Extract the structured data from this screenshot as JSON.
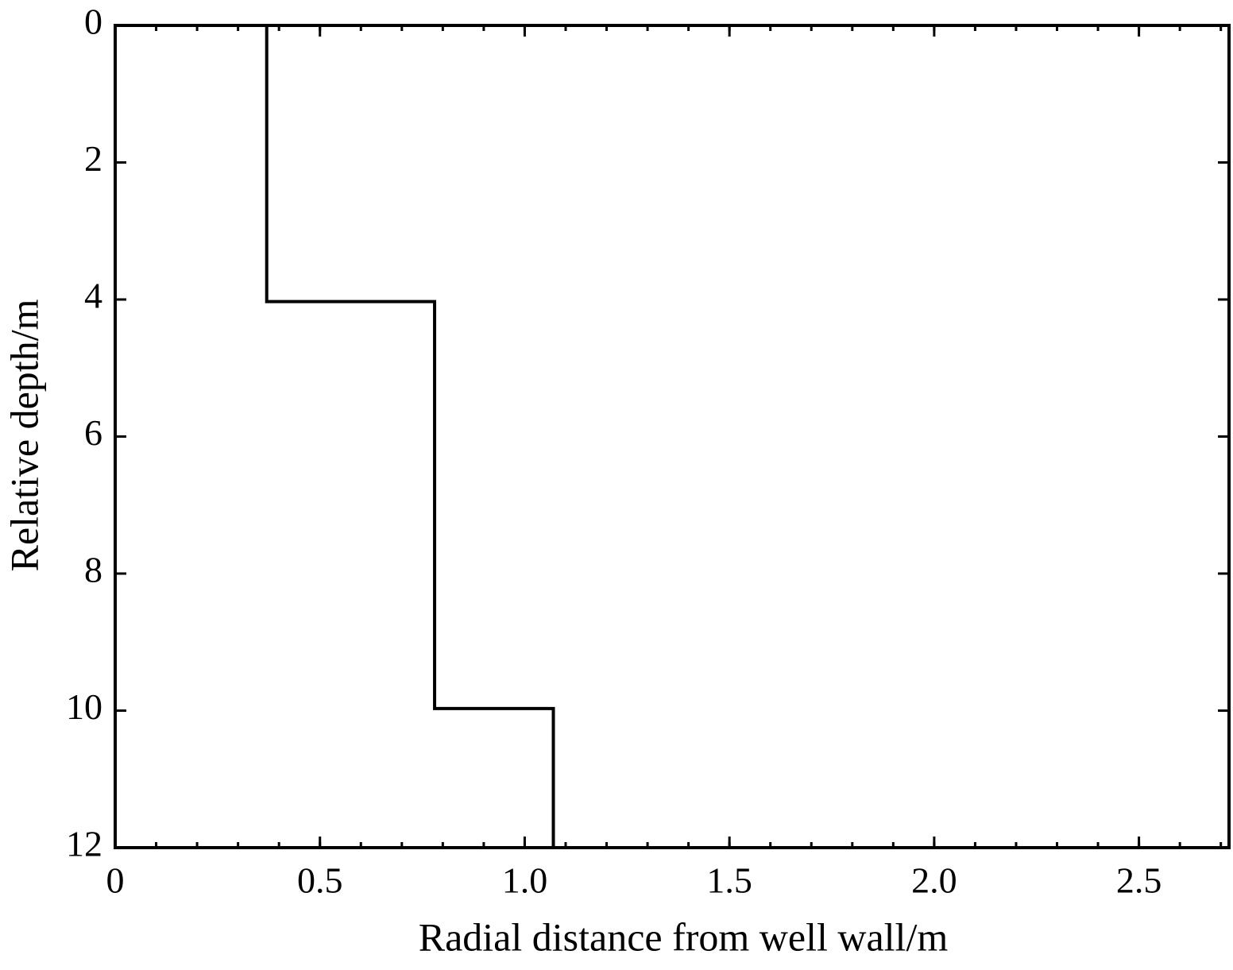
{
  "chart_data": {
    "type": "line",
    "x_label": "Radial distance from well wall/m",
    "y_label": "Relative depth/m",
    "series": [
      {
        "color": "#000000",
        "x": [
          0.37,
          0.37,
          0.78,
          0.78,
          1.07,
          1.07
        ],
        "values": [
          0,
          4.03,
          4.03,
          9.97,
          9.97,
          12
        ]
      }
    ],
    "xlim": [
      0,
      2.72
    ],
    "xticks": [
      0,
      0.5,
      {
        "value": 1,
        "label": "1.0"
      },
      1.5,
      {
        "value": 2,
        "label": "2.0"
      },
      2.5
    ],
    "ylim": [
      0,
      12
    ],
    "y_inverted": true,
    "yticks": [
      0,
      2,
      4,
      6,
      8,
      10,
      12
    ],
    "grid": false
  }
}
